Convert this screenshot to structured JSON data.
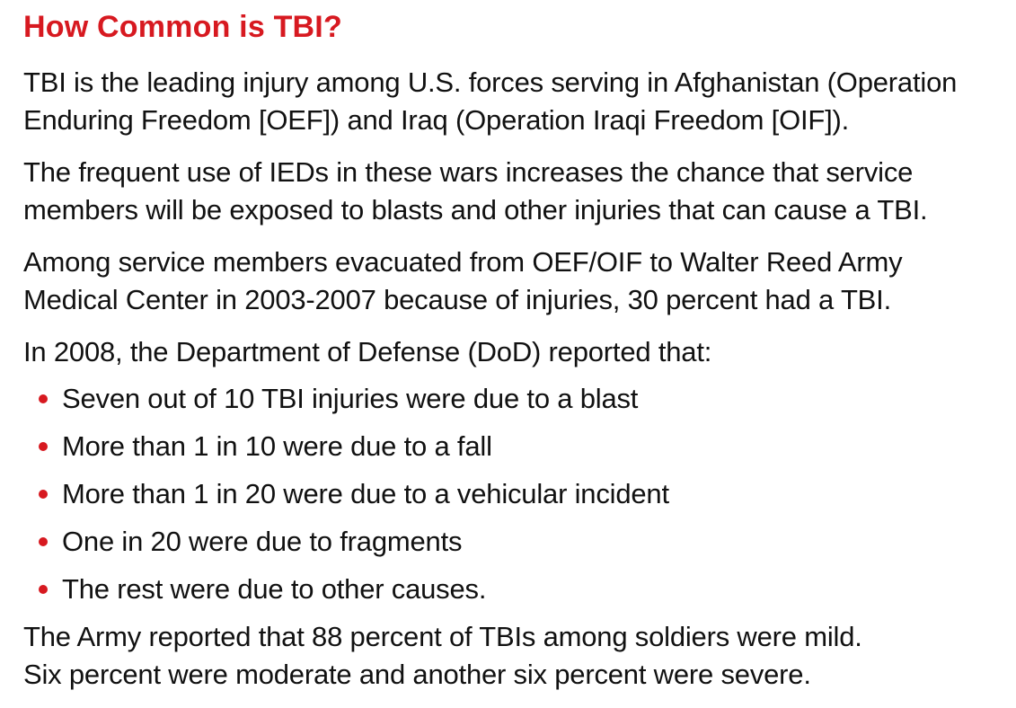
{
  "title": "How Common is TBI?",
  "paragraphs": [
    {
      "line1": "TBI is the leading injury among U.S. forces serving in Afghanistan (Operation",
      "line2": "Enduring Freedom [OEF]) and Iraq (Operation Iraqi Freedom [OIF])."
    },
    {
      "line1": "The frequent use of IEDs in these wars increases the chance that service",
      "line2": "members will be exposed to blasts and other injuries that can cause a TBI."
    },
    {
      "line1": "Among service members evacuated from OEF/OIF to Walter Reed Army",
      "line2": "Medical Center in 2003-2007 because of injuries, 30 percent had a TBI."
    }
  ],
  "dod_intro": "In 2008, the Department of Defense (DoD) reported that:",
  "bullets": [
    "Seven out of 10 TBI injuries were due to a blast",
    "More than 1 in 10 were due to a fall",
    "More than 1 in 20 were due to a vehicular incident",
    "One in 20 were due to fragments",
    "The rest were due to other causes."
  ],
  "closing": {
    "line1": "The Army reported that 88 percent of TBIs among soldiers were mild.",
    "line2": "Six percent were moderate and another six percent were severe."
  },
  "colors": {
    "accent": "#d71920",
    "text": "#111111",
    "background": "#ffffff"
  }
}
